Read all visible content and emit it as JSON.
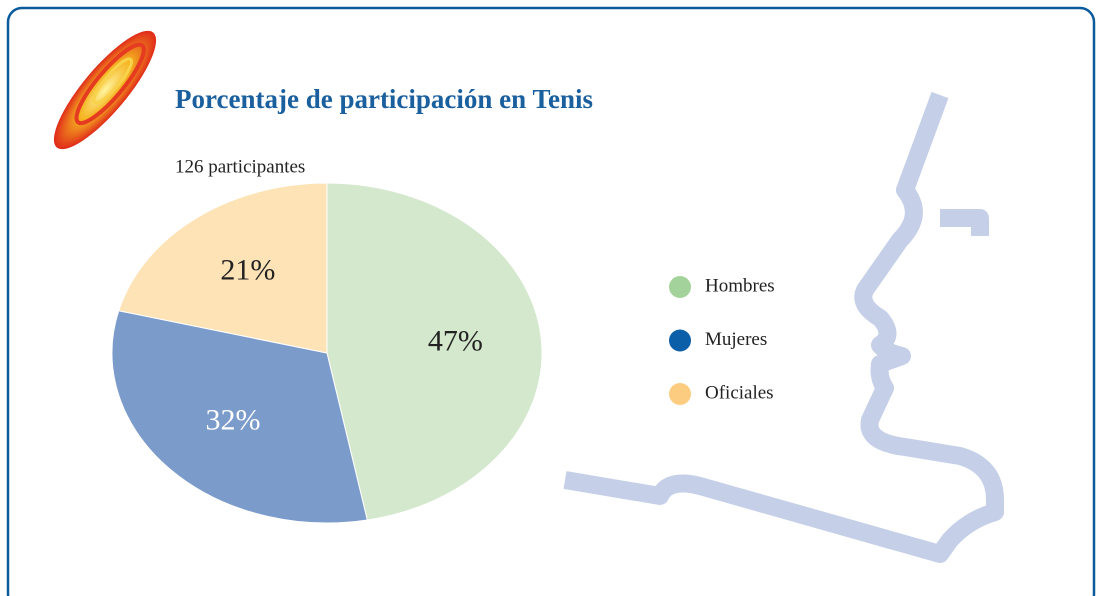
{
  "chart_data": {
    "type": "pie",
    "title": "Porcentaje de participación en Tenis",
    "subtitle": "126 participantes",
    "categories": [
      "Hombres",
      "Mujeres",
      "Oficiales"
    ],
    "values": [
      47,
      32,
      21
    ],
    "value_labels": [
      "47%",
      "32%",
      "21%"
    ],
    "colors": [
      "#a3d39a",
      "#0b5ea8",
      "#fccc80"
    ],
    "fill_colors": [
      "#d3e8cc",
      "#7b9bcb",
      "#fde3b5"
    ],
    "legend": "right"
  }
}
